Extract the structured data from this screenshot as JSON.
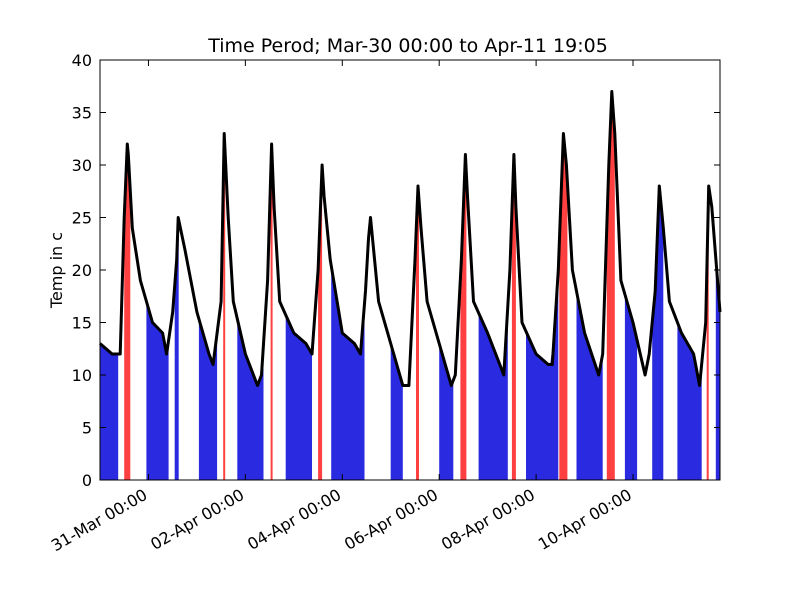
{
  "chart_data": {
    "type": "line",
    "title": "Time Perod; Mar-30 00:00 to Apr-11 19:05",
    "xlabel": "",
    "ylabel": "Temp in c",
    "xlim": [
      "Mar-30 00:00",
      "Apr-11 19:05"
    ],
    "ylim": [
      0,
      40
    ],
    "yticks": [
      0,
      5,
      10,
      15,
      20,
      25,
      30,
      35,
      40
    ],
    "xticks": [
      "31-Mar 00:00",
      "02-Apr 00:00",
      "04-Apr 00:00",
      "06-Apr 00:00",
      "08-Apr 00:00",
      "10-Apr 00:00"
    ],
    "grid": false,
    "colors": {
      "line": "#000000",
      "low_fill": "#2a2ae0",
      "low_fill_light": "#6060e8",
      "high_fill": "#ff4040",
      "high_fill_dark": "#c82020"
    },
    "series": [
      {
        "color": "#000000",
        "x": [
          "Mar-30 00:00",
          "Mar-30 06:00",
          "Mar-30 10:00",
          "Mar-30 12:00",
          "Mar-30 13:30",
          "Mar-30 14:00",
          "Mar-30 16:00",
          "Mar-30 20:00",
          "Mar-31 02:00",
          "Mar-31 07:00",
          "Mar-31 09:00",
          "Mar-31 12:00",
          "Mar-31 14:00",
          "Mar-31 14:45",
          "Mar-31 18:00",
          "Apr-01 00:00",
          "Apr-01 06:00",
          "Apr-01 08:00",
          "Apr-01 12:00",
          "Apr-01 13:30",
          "Apr-01 15:30",
          "Apr-01 18:00",
          "Apr-02 00:00",
          "Apr-02 06:00",
          "Apr-02 08:00",
          "Apr-02 11:00",
          "Apr-02 13:00",
          "Apr-02 14:15",
          "Apr-02 17:00",
          "Apr-03 00:00",
          "Apr-03 06:00",
          "Apr-03 09:00",
          "Apr-03 12:00",
          "Apr-03 14:00",
          "Apr-03 15:00",
          "Apr-03 18:00",
          "Apr-04 00:00",
          "Apr-04 06:00",
          "Apr-04 09:00",
          "Apr-04 11:30",
          "Apr-04 13:00",
          "Apr-04 14:00",
          "Apr-04 18:00",
          "Apr-05 00:00",
          "Apr-05 06:00",
          "Apr-05 09:00",
          "Apr-05 12:00",
          "Apr-05 13:30",
          "Apr-05 15:00",
          "Apr-05 18:00",
          "Apr-06 00:00",
          "Apr-06 06:00",
          "Apr-06 08:00",
          "Apr-06 11:00",
          "Apr-06 13:00",
          "Apr-06 14:00",
          "Apr-06 17:00",
          "Apr-07 00:00",
          "Apr-07 06:00",
          "Apr-07 08:00",
          "Apr-07 11:00",
          "Apr-07 13:00",
          "Apr-07 14:00",
          "Apr-07 17:00",
          "Apr-08 00:00",
          "Apr-08 06:00",
          "Apr-08 08:00",
          "Apr-08 11:00",
          "Apr-08 13:30",
          "Apr-08 15:00",
          "Apr-08 18:00",
          "Apr-09 00:00",
          "Apr-09 07:00",
          "Apr-09 09:00",
          "Apr-09 12:00",
          "Apr-09 13:30",
          "Apr-09 15:00",
          "Apr-09 18:00",
          "Apr-10 00:00",
          "Apr-10 06:00",
          "Apr-10 08:00",
          "Apr-10 11:00",
          "Apr-10 13:00",
          "Apr-10 15:00",
          "Apr-10 18:00",
          "Apr-11 00:00",
          "Apr-11 06:00",
          "Apr-11 09:00",
          "Apr-11 12:00",
          "Apr-11 13:30",
          "Apr-11 15:00",
          "Apr-11 19:05"
        ],
        "y": [
          13,
          12,
          12,
          25,
          32,
          31,
          24,
          19,
          15,
          14,
          12,
          16,
          21,
          25,
          22,
          16,
          12,
          11,
          17,
          33,
          25,
          17,
          12,
          9,
          10,
          19,
          32,
          26,
          17,
          14,
          13,
          12,
          20,
          30,
          27,
          21,
          14,
          13,
          12,
          18,
          23,
          25,
          17,
          13,
          9,
          9,
          21,
          28,
          24,
          17,
          13,
          9,
          10,
          21,
          31,
          27,
          17,
          14,
          11,
          10,
          20,
          31,
          26,
          15,
          12,
          11,
          11,
          20,
          33,
          30,
          20,
          14,
          10,
          12,
          30,
          37,
          33,
          19,
          15,
          10,
          12,
          18,
          28,
          24,
          17,
          14,
          12,
          9,
          15,
          28,
          26,
          16
        ]
      }
    ],
    "fill_bands": [
      {
        "start": "Mar-30 00:00",
        "end": "Mar-30 09:00",
        "class": "low"
      },
      {
        "start": "Mar-30 12:00",
        "end": "Mar-30 15:00",
        "class": "high"
      },
      {
        "start": "Mar-30 23:00",
        "end": "Mar-31 10:00",
        "class": "low"
      },
      {
        "start": "Mar-31 13:00",
        "end": "Mar-31 15:00",
        "class": "low"
      },
      {
        "start": "Apr-01 01:00",
        "end": "Apr-01 10:00",
        "class": "low"
      },
      {
        "start": "Apr-01 13:00",
        "end": "Apr-01 14:00",
        "class": "high"
      },
      {
        "start": "Apr-01 20:00",
        "end": "Apr-02 09:00",
        "class": "low"
      },
      {
        "start": "Apr-02 12:30",
        "end": "Apr-02 13:30",
        "class": "high"
      },
      {
        "start": "Apr-02 20:00",
        "end": "Apr-03 09:00",
        "class": "low"
      },
      {
        "start": "Apr-03 12:00",
        "end": "Apr-03 14:00",
        "class": "high"
      },
      {
        "start": "Apr-03 18:30",
        "end": "Apr-04 11:00",
        "class": "low"
      },
      {
        "start": "Apr-05 00:00",
        "end": "Apr-05 06:00",
        "class": "low"
      },
      {
        "start": "Apr-05 12:30",
        "end": "Apr-05 14:00",
        "class": "high"
      },
      {
        "start": "Apr-06 00:00",
        "end": "Apr-06 07:00",
        "class": "low"
      },
      {
        "start": "Apr-06 10:30",
        "end": "Apr-06 13:30",
        "class": "high"
      },
      {
        "start": "Apr-06 19:30",
        "end": "Apr-07 10:00",
        "class": "low"
      },
      {
        "start": "Apr-07 12:00",
        "end": "Apr-07 14:00",
        "class": "high"
      },
      {
        "start": "Apr-07 19:00",
        "end": "Apr-08 11:00",
        "class": "low"
      },
      {
        "start": "Apr-08 11:30",
        "end": "Apr-08 15:30",
        "class": "high"
      },
      {
        "start": "Apr-08 20:00",
        "end": "Apr-09 09:00",
        "class": "low"
      },
      {
        "start": "Apr-09 11:00",
        "end": "Apr-09 15:00",
        "class": "high"
      },
      {
        "start": "Apr-09 20:00",
        "end": "Apr-10 02:00",
        "class": "low"
      },
      {
        "start": "Apr-10 09:30",
        "end": "Apr-10 15:00",
        "class": "low"
      },
      {
        "start": "Apr-10 22:00",
        "end": "Apr-11 10:00",
        "class": "low"
      },
      {
        "start": "Apr-11 12:30",
        "end": "Apr-11 13:30",
        "class": "high"
      },
      {
        "start": "Apr-11 17:00",
        "end": "Apr-11 19:05",
        "class": "low"
      }
    ]
  }
}
